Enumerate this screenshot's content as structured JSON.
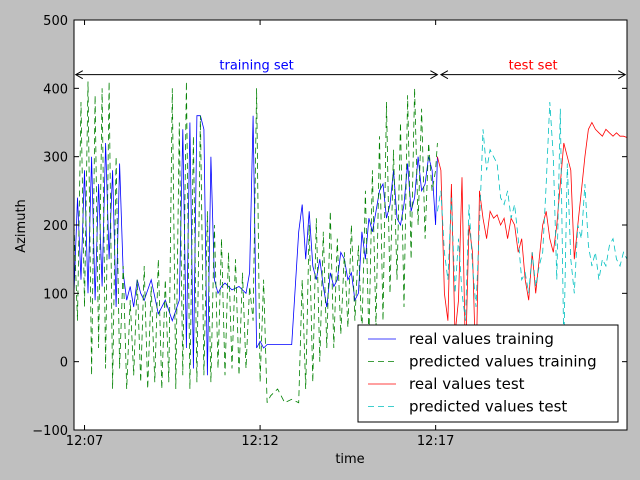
{
  "chart_data": {
    "type": "line",
    "xlabel": "time",
    "ylabel": "Azimuth",
    "ylim": [
      -100,
      500
    ],
    "xlim": [
      0,
      15.75
    ],
    "yticks": [
      "500",
      "400",
      "300",
      "200",
      "100",
      "0",
      "−100"
    ],
    "ytick_values": [
      500,
      400,
      300,
      200,
      100,
      0,
      -100
    ],
    "xticks": [
      "12:07",
      "12:12",
      "12:17"
    ],
    "xtick_values": [
      0.3,
      5.3,
      10.3
    ],
    "annotations": [
      {
        "text": "training set",
        "color": "#0000ff",
        "x_start": 0.05,
        "x_end": 10.35,
        "y": 420
      },
      {
        "text": "test set",
        "color": "#ff0000",
        "x_start": 10.45,
        "x_end": 15.7,
        "y": 420
      }
    ],
    "legend": {
      "placement": "lower-right"
    },
    "series": [
      {
        "name": "real values training",
        "color": "#0000ff",
        "dash": "solid",
        "x": [
          0.0,
          0.1,
          0.2,
          0.3,
          0.4,
          0.5,
          0.6,
          0.7,
          0.8,
          0.9,
          1.0,
          1.1,
          1.2,
          1.3,
          1.4,
          1.5,
          1.6,
          1.7,
          1.8,
          1.9,
          2.0,
          2.2,
          2.4,
          2.6,
          2.8,
          3.0,
          3.1,
          3.2,
          3.3,
          3.4,
          3.5,
          3.6,
          3.7,
          3.8,
          3.9,
          4.0,
          4.1,
          4.2,
          4.3,
          4.5,
          4.7,
          4.9,
          5.0,
          5.1,
          5.2,
          5.3,
          5.4,
          5.5,
          5.6,
          5.8,
          6.0,
          6.2,
          6.4,
          6.5,
          6.6,
          6.7,
          6.8,
          6.9,
          7.0,
          7.1,
          7.2,
          7.3,
          7.4,
          7.5,
          7.6,
          7.7,
          7.8,
          7.9,
          8.0,
          8.1,
          8.2,
          8.3,
          8.4,
          8.5,
          8.6,
          8.7,
          8.8,
          8.9,
          9.0,
          9.1,
          9.2,
          9.3,
          9.4,
          9.5,
          9.6,
          9.7,
          9.8,
          9.9,
          10.0,
          10.1,
          10.2,
          10.3,
          10.35
        ],
        "y": [
          100,
          240,
          120,
          280,
          100,
          300,
          90,
          260,
          110,
          320,
          150,
          280,
          80,
          290,
          130,
          90,
          110,
          80,
          120,
          100,
          90,
          120,
          70,
          90,
          60,
          90,
          340,
          20,
          350,
          -10,
          360,
          360,
          340,
          -20,
          300,
          120,
          100,
          110,
          115,
          105,
          110,
          100,
          130,
          360,
          20,
          30,
          20,
          25,
          25,
          25,
          25,
          25,
          190,
          230,
          150,
          220,
          140,
          120,
          150,
          110,
          80,
          130,
          110,
          120,
          160,
          150,
          120,
          130,
          90,
          100,
          190,
          150,
          210,
          190,
          220,
          250,
          260,
          210,
          230,
          280,
          210,
          200,
          230,
          290,
          220,
          240,
          300,
          250,
          260,
          300,
          280,
          200,
          300
        ]
      },
      {
        "name": "predicted values training",
        "color": "#008000",
        "dash": "6,4",
        "x": [
          0.0,
          0.1,
          0.2,
          0.3,
          0.4,
          0.5,
          0.6,
          0.7,
          0.8,
          0.9,
          1.0,
          1.1,
          1.2,
          1.3,
          1.4,
          1.5,
          1.6,
          1.7,
          1.8,
          1.9,
          2.0,
          2.1,
          2.2,
          2.3,
          2.4,
          2.5,
          2.6,
          2.7,
          2.8,
          2.9,
          3.0,
          3.1,
          3.2,
          3.3,
          3.4,
          3.5,
          3.6,
          3.7,
          3.8,
          3.9,
          4.0,
          4.1,
          4.2,
          4.3,
          4.4,
          4.5,
          4.6,
          4.7,
          4.8,
          4.9,
          5.0,
          5.1,
          5.2,
          5.3,
          5.4,
          5.5,
          5.6,
          5.8,
          6.0,
          6.2,
          6.4,
          6.5,
          6.6,
          6.7,
          6.8,
          6.9,
          7.0,
          7.1,
          7.2,
          7.3,
          7.4,
          7.5,
          7.6,
          7.7,
          7.8,
          7.9,
          8.0,
          8.1,
          8.2,
          8.3,
          8.4,
          8.5,
          8.6,
          8.7,
          8.8,
          8.9,
          9.0,
          9.1,
          9.2,
          9.3,
          9.4,
          9.5,
          9.6,
          9.7,
          9.8,
          9.9,
          10.0,
          10.1,
          10.2,
          10.3,
          10.35
        ],
        "y": [
          200,
          60,
          380,
          80,
          410,
          -20,
          390,
          20,
          400,
          -10,
          410,
          -40,
          300,
          -10,
          140,
          -40,
          90,
          -20,
          120,
          -30,
          140,
          -40,
          110,
          -30,
          150,
          -40,
          120,
          -30,
          400,
          -40,
          350,
          -20,
          410,
          -40,
          330,
          -30,
          360,
          -20,
          220,
          -30,
          200,
          -10,
          180,
          -20,
          160,
          -10,
          150,
          -20,
          130,
          -10,
          110,
          60,
          400,
          -30,
          120,
          -60,
          -50,
          -40,
          -60,
          -55,
          -60,
          120,
          -40,
          200,
          -30,
          210,
          0,
          190,
          20,
          220,
          20,
          180,
          40,
          160,
          50,
          200,
          60,
          170,
          40,
          250,
          30,
          280,
          50,
          330,
          60,
          380,
          100,
          310,
          120,
          350,
          80,
          390,
          150,
          400,
          200,
          370,
          180,
          320,
          250,
          280,
          320
        ]
      },
      {
        "name": "real values test",
        "color": "#ff0000",
        "dash": "solid",
        "x": [
          10.35,
          10.45,
          10.55,
          10.65,
          10.75,
          10.85,
          10.95,
          11.05,
          11.15,
          11.25,
          11.35,
          11.45,
          11.55,
          11.65,
          11.75,
          11.85,
          11.95,
          12.05,
          12.15,
          12.25,
          12.35,
          12.45,
          12.55,
          12.65,
          12.75,
          12.85,
          12.95,
          13.05,
          13.15,
          13.25,
          13.35,
          13.45,
          13.55,
          13.65,
          13.75,
          13.85,
          13.95,
          14.05,
          14.15,
          14.25,
          14.35,
          14.45,
          14.55,
          14.65,
          14.75,
          14.85,
          14.95,
          15.05,
          15.15,
          15.25,
          15.35,
          15.45,
          15.55,
          15.65,
          15.75
        ],
        "y": [
          300,
          280,
          100,
          60,
          260,
          40,
          90,
          270,
          0,
          200,
          160,
          -20,
          250,
          210,
          180,
          220,
          210,
          215,
          200,
          210,
          180,
          210,
          200,
          160,
          180,
          120,
          90,
          160,
          100,
          150,
          200,
          220,
          180,
          160,
          200,
          260,
          320,
          300,
          280,
          150,
          200,
          250,
          300,
          340,
          350,
          340,
          335,
          330,
          340,
          335,
          330,
          335,
          330,
          330,
          328
        ]
      },
      {
        "name": "predicted values test",
        "color": "#00bfbf",
        "dash": "6,4",
        "x": [
          10.35,
          10.45,
          10.55,
          10.65,
          10.75,
          10.85,
          10.95,
          11.05,
          11.15,
          11.25,
          11.35,
          11.45,
          11.55,
          11.65,
          11.75,
          11.85,
          11.95,
          12.05,
          12.15,
          12.25,
          12.35,
          12.45,
          12.55,
          12.65,
          12.75,
          12.85,
          12.95,
          13.05,
          13.15,
          13.25,
          13.35,
          13.45,
          13.55,
          13.65,
          13.75,
          13.85,
          13.95,
          14.05,
          14.15,
          14.25,
          14.35,
          14.45,
          14.55,
          14.65,
          14.75,
          14.85,
          14.95,
          15.05,
          15.15,
          15.25,
          15.35,
          15.45,
          15.55,
          15.65,
          15.75
        ],
        "y": [
          220,
          250,
          160,
          120,
          240,
          100,
          180,
          100,
          60,
          230,
          140,
          80,
          200,
          340,
          280,
          310,
          300,
          290,
          240,
          230,
          250,
          210,
          230,
          180,
          120,
          130,
          100,
          160,
          110,
          140,
          160,
          260,
          380,
          300,
          120,
          370,
          20,
          290,
          150,
          100,
          200,
          180,
          260,
          170,
          140,
          160,
          120,
          150,
          140,
          170,
          180,
          150,
          140,
          160,
          150
        ]
      }
    ]
  }
}
